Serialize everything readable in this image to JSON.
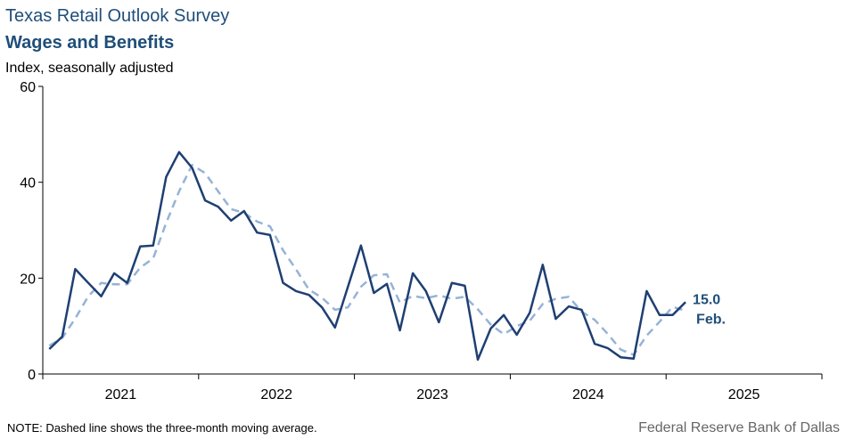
{
  "chart_data": {
    "type": "line",
    "title": "Texas Retail Outlook Survey",
    "subtitle": "Wages and Benefits",
    "y_label": "Index, seasonally adjusted",
    "note": "NOTE: Dashed line shows the three-month  moving average.",
    "source": "Federal Reserve Bank of Dallas",
    "annotations": [
      "15.0",
      "Feb."
    ],
    "xlim": [
      2021,
      2026
    ],
    "xticks": [
      2021,
      2022,
      2023,
      2024,
      2025,
      2026
    ],
    "year_labels": [
      "2021",
      "2022",
      "2023",
      "2024",
      "2025"
    ],
    "ylim": [
      0,
      60
    ],
    "yticks": [
      0,
      20,
      40,
      60
    ],
    "x": [
      2021.042,
      2021.125,
      2021.208,
      2021.292,
      2021.375,
      2021.458,
      2021.542,
      2021.625,
      2021.708,
      2021.792,
      2021.875,
      2021.958,
      2022.042,
      2022.125,
      2022.208,
      2022.292,
      2022.375,
      2022.458,
      2022.542,
      2022.625,
      2022.708,
      2022.792,
      2022.875,
      2022.958,
      2023.042,
      2023.125,
      2023.208,
      2023.292,
      2023.375,
      2023.458,
      2023.542,
      2023.625,
      2023.708,
      2023.792,
      2023.875,
      2023.958,
      2024.042,
      2024.125,
      2024.208,
      2024.292,
      2024.375,
      2024.458,
      2024.542,
      2024.625,
      2024.708,
      2024.792,
      2024.875,
      2024.958,
      2025.042,
      2025.125
    ],
    "series": [
      {
        "name": "Index",
        "color": "#1f3f73",
        "dashed": false,
        "values": [
          5.2,
          7.8,
          21.9,
          19.0,
          16.2,
          21.0,
          19.0,
          26.6,
          26.8,
          41.1,
          46.3,
          43.0,
          36.2,
          34.9,
          32.0,
          34.0,
          29.5,
          29.0,
          19.0,
          17.3,
          16.5,
          13.9,
          9.7,
          18.2,
          26.8,
          16.9,
          18.8,
          9.1,
          21.0,
          17.3,
          10.8,
          19.0,
          18.4,
          3.0,
          9.5,
          12.3,
          8.2,
          12.8,
          22.8,
          11.5,
          14.1,
          13.4,
          6.3,
          5.4,
          3.5,
          3.2,
          17.3,
          12.3,
          12.3,
          15.0
        ]
      },
      {
        "name": "Three-month moving average",
        "color": "#95b3d7",
        "dashed": true,
        "values": [
          5.9,
          7.5,
          11.6,
          16.2,
          19.0,
          18.7,
          18.7,
          22.2,
          24.1,
          31.5,
          38.1,
          43.6,
          41.9,
          38.1,
          34.4,
          33.6,
          31.8,
          30.8,
          25.8,
          21.8,
          17.6,
          15.9,
          13.4,
          13.9,
          18.2,
          20.6,
          20.8,
          14.9,
          16.3,
          15.8,
          16.4,
          15.7,
          16.1,
          13.5,
          10.3,
          8.3,
          10.0,
          11.1,
          14.6,
          15.7,
          16.1,
          13.0,
          11.3,
          8.4,
          5.1,
          4.0,
          8.0,
          10.9,
          14.0,
          13.2
        ]
      }
    ]
  }
}
